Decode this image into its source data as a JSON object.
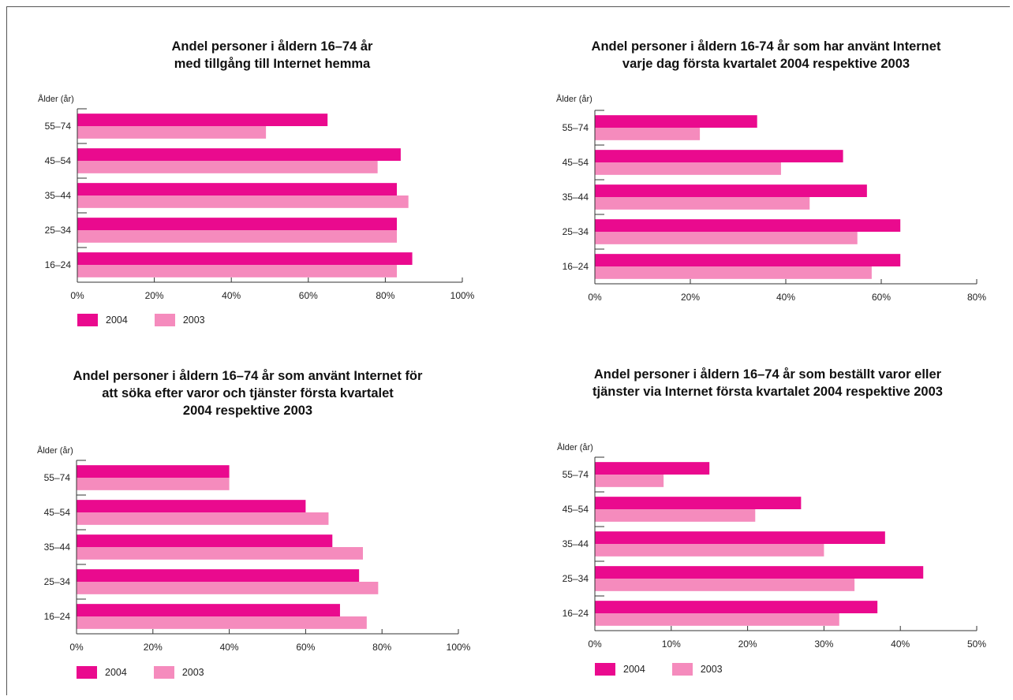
{
  "colors": {
    "s2004": "#ea0a8e",
    "s2003": "#f58bbd",
    "axis": "#333333"
  },
  "chart_data": [
    {
      "type": "bar",
      "orientation": "horizontal",
      "title_lines": [
        "Andel personer i åldern 16–74 år",
        "med tillgång till Internet hemma"
      ],
      "ylabel": "Ålder (år)",
      "categories": [
        "55–74",
        "45–54",
        "35–44",
        "25–34",
        "16–24"
      ],
      "series": [
        {
          "name": "2004",
          "values": [
            65,
            84,
            83,
            83,
            87
          ]
        },
        {
          "name": "2003",
          "values": [
            49,
            78,
            86,
            83,
            83
          ]
        }
      ],
      "xlim": [
        0,
        100
      ],
      "xticks": [
        0,
        20,
        40,
        60,
        80,
        100
      ],
      "xtick_labels": [
        "0%",
        "20%",
        "40%",
        "60%",
        "80%",
        "100%"
      ],
      "legend": [
        "2004",
        "2003"
      ]
    },
    {
      "type": "bar",
      "orientation": "horizontal",
      "title_lines": [
        "Andel personer i åldern 16-74 år som har använt Internet",
        "varje dag första kvartalet 2004 respektive 2003"
      ],
      "ylabel": "Ålder (år)",
      "categories": [
        "55–74",
        "45–54",
        "35–44",
        "25–34",
        "16–24"
      ],
      "series": [
        {
          "name": "2004",
          "values": [
            34,
            52,
            57,
            64,
            64
          ]
        },
        {
          "name": "2003",
          "values": [
            22,
            39,
            45,
            55,
            58
          ]
        }
      ],
      "xlim": [
        0,
        80
      ],
      "xticks": [
        0,
        20,
        40,
        60,
        80
      ],
      "xtick_labels": [
        "0%",
        "20%",
        "40%",
        "60%",
        "80%"
      ],
      "legend": []
    },
    {
      "type": "bar",
      "orientation": "horizontal",
      "title_lines": [
        "Andel personer i åldern 16–74 år som använt Internet för",
        "att söka efter varor och tjänster första kvartalet",
        "2004 respektive 2003"
      ],
      "ylabel": "Ålder (år)",
      "categories": [
        "55–74",
        "45–54",
        "35–44",
        "25–34",
        "16–24"
      ],
      "series": [
        {
          "name": "2004",
          "values": [
            40,
            60,
            67,
            74,
            69
          ]
        },
        {
          "name": "2003",
          "values": [
            40,
            66,
            75,
            79,
            76
          ]
        }
      ],
      "xlim": [
        0,
        100
      ],
      "xticks": [
        0,
        20,
        40,
        60,
        80,
        100
      ],
      "xtick_labels": [
        "0%",
        "20%",
        "40%",
        "60%",
        "80%",
        "100%"
      ],
      "legend": [
        "2004",
        "2003"
      ]
    },
    {
      "type": "bar",
      "orientation": "horizontal",
      "title_lines": [
        "Andel personer i åldern 16–74 år som beställt varor eller",
        "tjänster via Internet första kvartalet 2004 respektive 2003"
      ],
      "ylabel": "Ålder (år)",
      "categories": [
        "55–74",
        "45–54",
        "35–44",
        "25–34",
        "16–24"
      ],
      "series": [
        {
          "name": "2004",
          "values": [
            15,
            27,
            38,
            43,
            37
          ]
        },
        {
          "name": "2003",
          "values": [
            9,
            21,
            30,
            34,
            32
          ]
        }
      ],
      "xlim": [
        0,
        50
      ],
      "xticks": [
        0,
        10,
        20,
        30,
        40,
        50
      ],
      "xtick_labels": [
        "0%",
        "10%",
        "20%",
        "30%",
        "40%",
        "50%"
      ],
      "legend": [
        "2004",
        "2003"
      ]
    }
  ]
}
